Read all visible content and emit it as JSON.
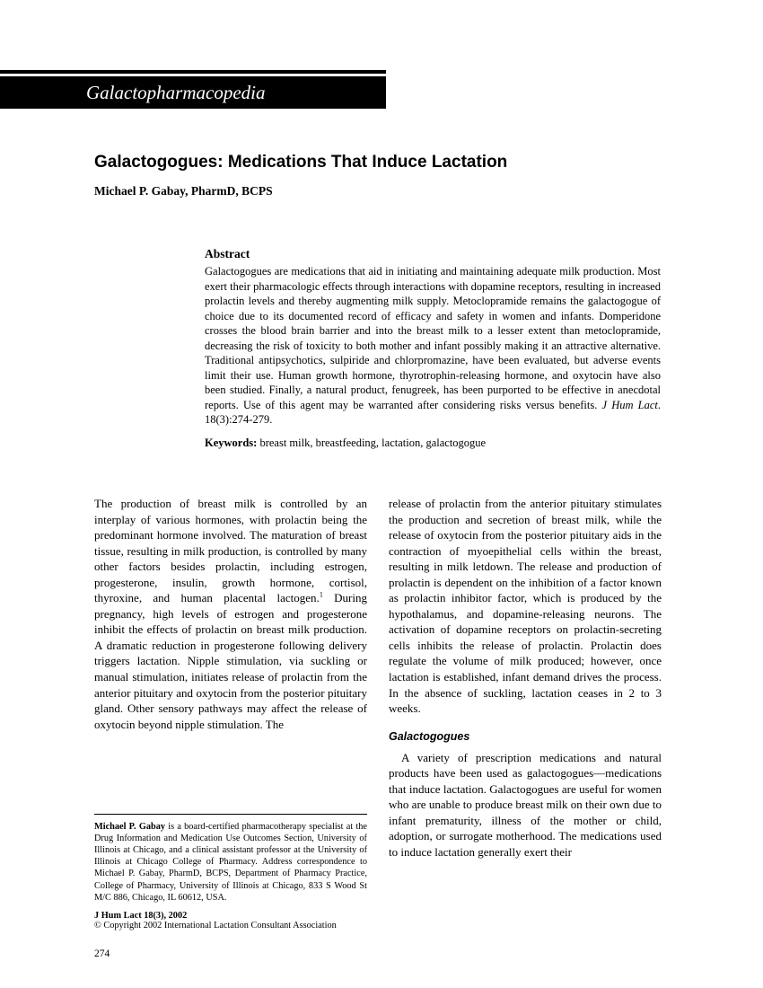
{
  "banner": {
    "label": "Galactopharmacopedia"
  },
  "article": {
    "title": "Galactogogues: Medications That Induce Lactation",
    "author": "Michael P. Gabay, PharmD, BCPS"
  },
  "abstract": {
    "heading": "Abstract",
    "body": "Galactogogues are medications that aid in initiating and maintaining adequate milk production. Most exert their pharmacologic effects through interactions with dopamine receptors, resulting in increased prolactin levels and thereby augmenting milk supply. Metoclopramide remains the galactogogue of choice due to its documented record of efficacy and safety in women and infants. Domperidone crosses the blood brain barrier and into the breast milk to a lesser extent than metoclopramide, decreasing the risk of toxicity to both mother and infant possibly making it an attractive alternative. Traditional antipsychotics, sulpiride and chlorpromazine, have been evaluated, but adverse events limit their use. Human growth hormone, thyrotrophin-releasing hormone, and oxytocin have also been studied. Finally, a natural product, fenugreek, has been purported to be effective in anecdotal reports. Use of this agent may be warranted after considering risks versus benefits.",
    "citation": "J Hum Lact",
    "citation_suffix": ". 18(3):274-279.",
    "keywords_label": "Keywords:",
    "keywords": " breast milk, breastfeeding, lactation, galactogogue"
  },
  "body": {
    "col1_p1_a": "The production of breast milk is controlled by an interplay of various hormones, with prolactin being the predominant hormone involved. The maturation of breast tissue, resulting in milk production, is controlled by many other factors besides prolactin, including estrogen, progesterone, insulin, growth hormone, cortisol, thyroxine, and human placental lactogen.",
    "col1_p1_b": " During pregnancy, high levels of estrogen and progesterone inhibit the effects of prolactin on breast milk production. A dramatic reduction in progesterone following delivery triggers lactation. Nipple stimulation, via suckling or manual stimulation, initiates release of prolactin from the anterior pituitary and oxytocin from the posterior pituitary gland. Other sensory pathways may affect the release of oxytocin beyond nipple stimulation. The",
    "col2_p1": "release of prolactin from the anterior pituitary stimulates the production and secretion of breast milk, while the release of oxytocin from the posterior pituitary aids in the contraction of myoepithelial cells within the breast, resulting in milk letdown. The release and production of prolactin is dependent on the inhibition of a factor known as prolactin inhibitor factor, which is produced by the hypothalamus, and dopamine-releasing neurons. The activation of dopamine receptors on prolactin-secreting cells inhibits the release of prolactin. Prolactin does regulate the volume of milk produced; however, once lactation is established, infant demand drives the process. In the absence of suckling, lactation ceases in 2 to 3 weeks.",
    "section_heading": "Galactogogues",
    "col2_p2": "A variety of prescription medications and natural products have been used as galactogogues—medications that induce lactation. Galactogogues are useful for women who are unable to produce breast milk on their own due to infant prematurity, illness of the mother or child, adoption, or surrogate motherhood. The medications used to induce lactation generally exert their"
  },
  "footnote": {
    "bio": "Michael P. Gabay is a board-certified pharmacotherapy specialist at the Drug Information and Medication Use Outcomes Section, University of Illinois at Chicago, and a clinical assistant professor at the University of Illinois at Chicago College of Pharmacy. Address correspondence to Michael P. Gabay, PharmD, BCPS, Department of Pharmacy Practice, College of Pharmacy, University of Illinois at Chicago, 833 S Wood St M/C 886, Chicago, IL 60612, USA.",
    "journal": "J Hum Lact  18(3), 2002",
    "copyright": "© Copyright 2002 International Lactation Consultant Association"
  },
  "page": {
    "number": "274"
  }
}
